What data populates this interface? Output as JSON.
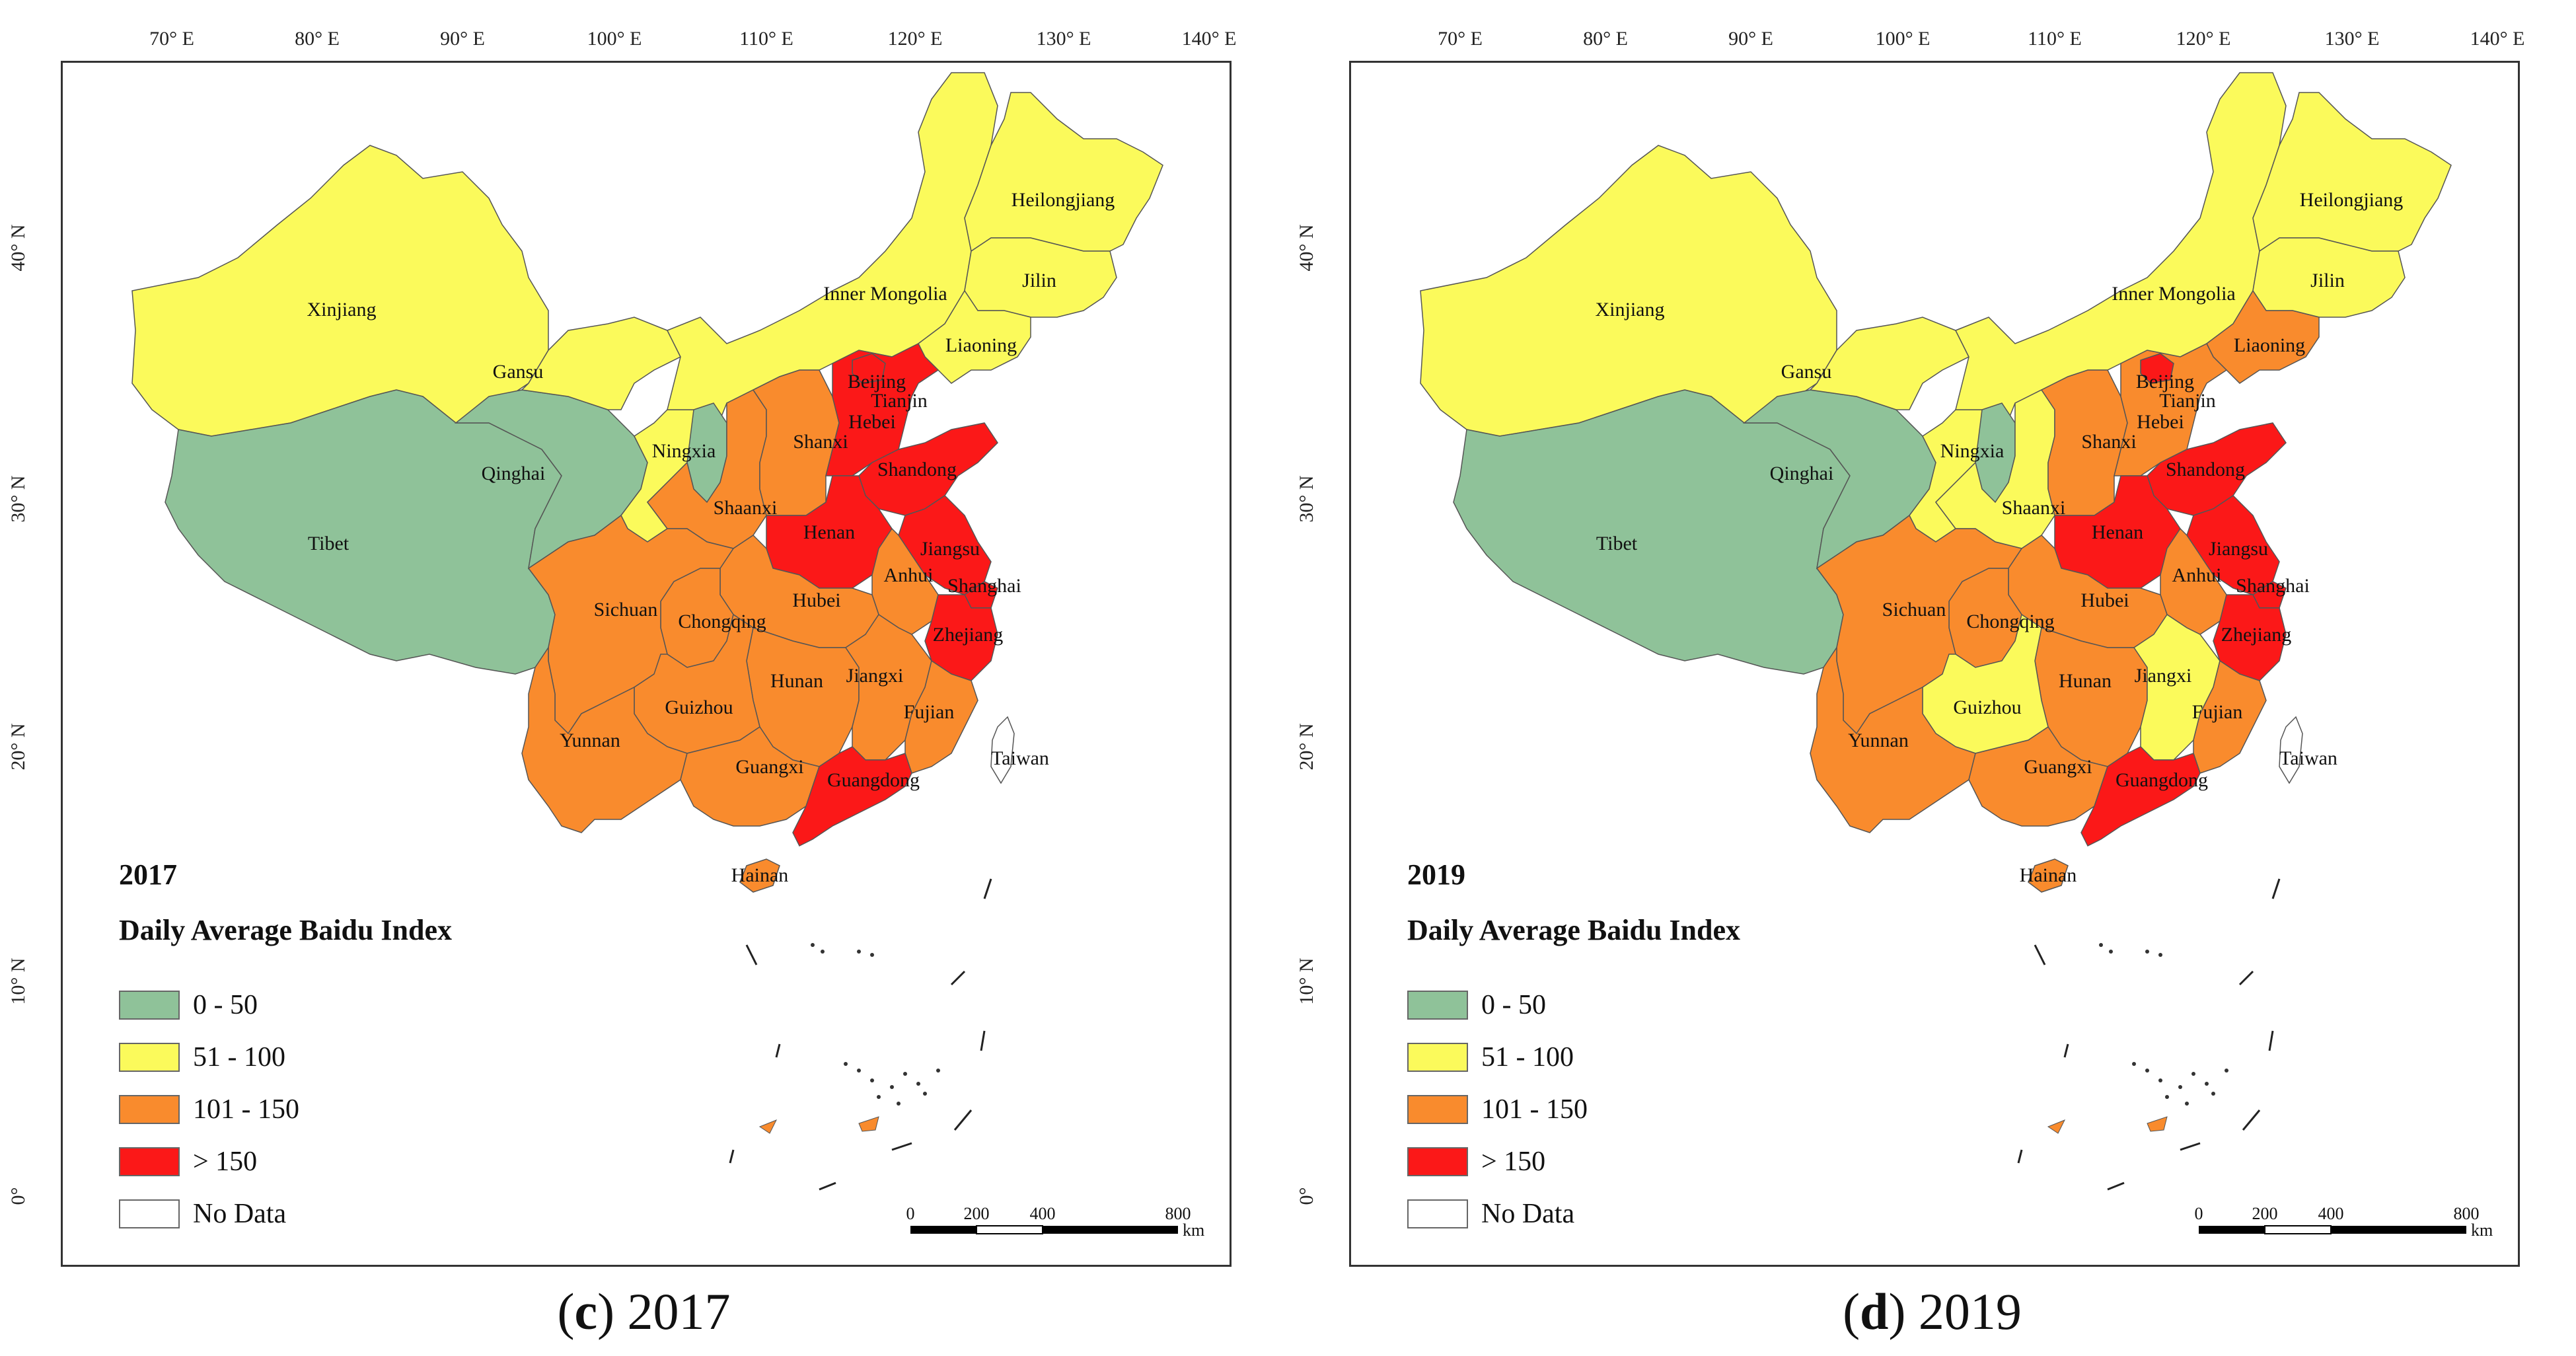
{
  "legend_colors": {
    "c0_50": "#8fc299",
    "c51_100": "#fbfa5b",
    "c101_150": "#f98b2d",
    "c150": "#fb1818",
    "nodata": "#ffffff"
  },
  "legend": {
    "title": "Daily Average Baidu Index",
    "items": [
      {
        "key": "c0_50",
        "label": "0 - 50"
      },
      {
        "key": "c51_100",
        "label": "51 - 100"
      },
      {
        "key": "c101_150",
        "label": "101 - 150"
      },
      {
        "key": "c150",
        "label": "> 150"
      },
      {
        "key": "nodata",
        "label": "No Data"
      }
    ]
  },
  "axes": {
    "longitudes": [
      "70° E",
      "80° E",
      "90° E",
      "100° E",
      "110° E",
      "120° E",
      "130° E",
      "140° E"
    ],
    "latitudes": [
      "40° N",
      "30° N",
      "20° N",
      "10° N",
      "0°"
    ]
  },
  "scale_bar": {
    "labels": [
      "0",
      "200",
      "400",
      "800"
    ],
    "unit": "km"
  },
  "panels": [
    {
      "letter": "c",
      "year": "2017",
      "categories": {
        "Xinjiang": "c51_100",
        "Tibet": "c0_50",
        "Qinghai": "c0_50",
        "Gansu": "c51_100",
        "Inner Mongolia": "c51_100",
        "Heilongjiang": "c51_100",
        "Jilin": "c51_100",
        "Liaoning": "c51_100",
        "Ningxia": "c0_50",
        "Shaanxi": "c101_150",
        "Shanxi": "c101_150",
        "Hebei": "c150",
        "Beijing": "c150",
        "Tianjin": "c150",
        "Shandong": "c150",
        "Henan": "c150",
        "Jiangsu": "c150",
        "Anhui": "c101_150",
        "Shanghai": "c150",
        "Zhejiang": "c150",
        "Hubei": "c101_150",
        "Sichuan": "c101_150",
        "Chongqing": "c101_150",
        "Hunan": "c101_150",
        "Jiangxi": "c101_150",
        "Fujian": "c101_150",
        "Guizhou": "c101_150",
        "Yunnan": "c101_150",
        "Guangxi": "c101_150",
        "Guangdong": "c150",
        "Hainan": "c101_150",
        "Taiwan": "nodata"
      }
    },
    {
      "letter": "d",
      "year": "2019",
      "categories": {
        "Xinjiang": "c51_100",
        "Tibet": "c0_50",
        "Qinghai": "c0_50",
        "Gansu": "c51_100",
        "Inner Mongolia": "c51_100",
        "Heilongjiang": "c51_100",
        "Jilin": "c51_100",
        "Liaoning": "c101_150",
        "Ningxia": "c0_50",
        "Shaanxi": "c51_100",
        "Shanxi": "c101_150",
        "Hebei": "c101_150",
        "Beijing": "c150",
        "Tianjin": "c101_150",
        "Shandong": "c150",
        "Henan": "c150",
        "Jiangsu": "c150",
        "Anhui": "c101_150",
        "Shanghai": "c150",
        "Zhejiang": "c150",
        "Hubei": "c101_150",
        "Sichuan": "c101_150",
        "Chongqing": "c101_150",
        "Hunan": "c101_150",
        "Jiangxi": "c51_100",
        "Fujian": "c101_150",
        "Guizhou": "c51_100",
        "Yunnan": "c101_150",
        "Guangxi": "c101_150",
        "Guangdong": "c150",
        "Hainan": "c101_150",
        "Taiwan": "nodata"
      }
    }
  ]
}
